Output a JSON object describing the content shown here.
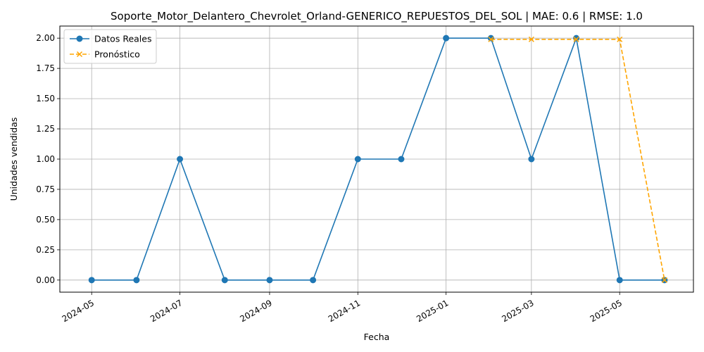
{
  "chart_data": {
    "type": "line",
    "title": "Soporte_Motor_Delantero_Chevrolet_Orland-GENERICO_REPUESTOS_DEL_SOL | MAE: 0.6 | RMSE: 1.0",
    "xlabel": "Fecha",
    "ylabel": "Unidades vendidas",
    "xlim": [
      "2024-04-09",
      "2025-06-21"
    ],
    "ylim": [
      -0.1,
      2.1
    ],
    "grid": true,
    "legend_position": "upper-left",
    "x_ticks": [
      "2024-05",
      "2024-07",
      "2024-09",
      "2024-11",
      "2025-01",
      "2025-03",
      "2025-05"
    ],
    "y_ticks": [
      "0.00",
      "0.25",
      "0.50",
      "0.75",
      "1.00",
      "1.25",
      "1.50",
      "1.75",
      "2.00"
    ],
    "series": [
      {
        "name": "Datos Reales",
        "color": "#1f77b4",
        "marker": "circle",
        "line_style": "solid",
        "x": [
          "2024-05-01",
          "2024-06-01",
          "2024-07-01",
          "2024-08-01",
          "2024-09-01",
          "2024-10-01",
          "2024-11-01",
          "2024-12-01",
          "2025-01-01",
          "2025-02-01",
          "2025-03-01",
          "2025-04-01",
          "2025-05-01",
          "2025-06-01"
        ],
        "y": [
          0,
          0,
          1,
          0,
          0,
          0,
          1,
          1,
          2,
          2,
          1,
          2,
          0,
          0
        ]
      },
      {
        "name": "Pronóstico",
        "color": "#ffa500",
        "marker": "x",
        "line_style": "dashed",
        "x": [
          "2025-02-01",
          "2025-03-01",
          "2025-04-01",
          "2025-05-01",
          "2025-06-01"
        ],
        "y": [
          1.99,
          1.99,
          1.99,
          1.99,
          0
        ]
      }
    ]
  }
}
